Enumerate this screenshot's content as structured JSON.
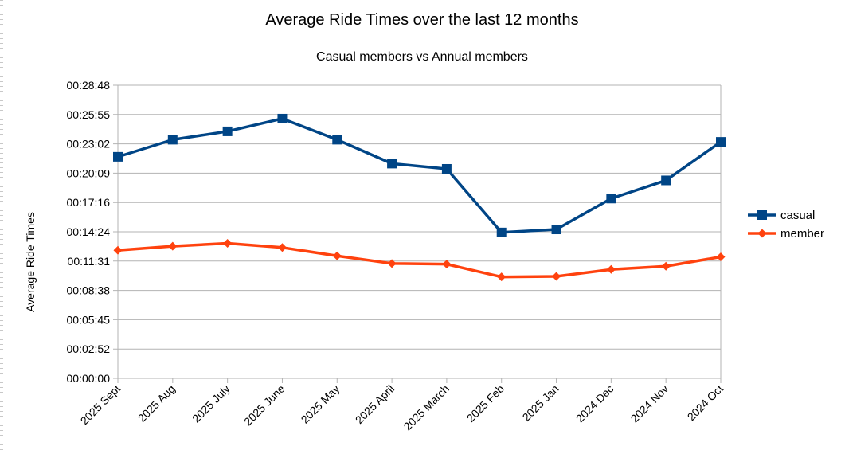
{
  "chart_data": {
    "type": "line",
    "title": "Average Ride Times over the last 12 months",
    "subtitle": "Casual members vs Annual members",
    "ylabel": "Average Ride Times",
    "xlabel": "",
    "categories": [
      "2025 Sept",
      "2025 Aug",
      "2025 July",
      "2025 June",
      "2025 May",
      "2025 April",
      "2025 March",
      "2025 Feb",
      "2025 Jan",
      "2024 Dec",
      "2024 Nov",
      "2024 Oct"
    ],
    "y_unit": "seconds",
    "ylim": [
      0,
      1728
    ],
    "y_ticks": [
      0,
      172.8,
      345.6,
      518.4,
      691.2,
      864,
      1036.8,
      1209.6,
      1382.4,
      1555.2,
      1728
    ],
    "y_tick_labels": [
      "00:00:00",
      "00:02:52",
      "00:05:45",
      "00:08:38",
      "00:11:31",
      "00:14:24",
      "00:17:16",
      "00:20:09",
      "00:23:02",
      "00:25:55",
      "00:28:48"
    ],
    "grid": true,
    "legend_position": "right",
    "series": [
      {
        "name": "casual",
        "color": "#004586",
        "marker": "square",
        "values": [
          1306,
          1407,
          1456,
          1531,
          1407,
          1266,
          1235,
          860,
          878,
          1060,
          1167,
          1394
        ]
      },
      {
        "name": "member",
        "color": "#ff420e",
        "marker": "diamond",
        "values": [
          755,
          779,
          796,
          771,
          722,
          677,
          673,
          598,
          601,
          642,
          661,
          716
        ]
      }
    ]
  }
}
